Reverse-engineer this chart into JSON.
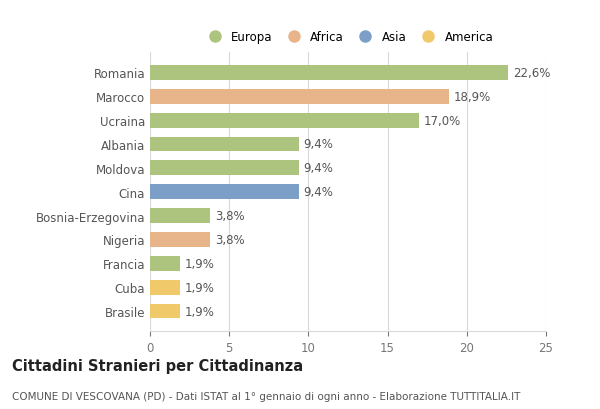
{
  "countries": [
    "Romania",
    "Marocco",
    "Ucraina",
    "Albania",
    "Moldova",
    "Cina",
    "Bosnia-Erzegovina",
    "Nigeria",
    "Francia",
    "Cuba",
    "Brasile"
  ],
  "values": [
    22.6,
    18.9,
    17.0,
    9.4,
    9.4,
    9.4,
    3.8,
    3.8,
    1.9,
    1.9,
    1.9
  ],
  "labels": [
    "22,6%",
    "18,9%",
    "17,0%",
    "9,4%",
    "9,4%",
    "9,4%",
    "3,8%",
    "3,8%",
    "1,9%",
    "1,9%",
    "1,9%"
  ],
  "colors": [
    "#adc47e",
    "#e8b48a",
    "#adc47e",
    "#adc47e",
    "#adc47e",
    "#7b9fc7",
    "#adc47e",
    "#e8b48a",
    "#adc47e",
    "#f0c96a",
    "#f0c96a"
  ],
  "legend_labels": [
    "Europa",
    "Africa",
    "Asia",
    "America"
  ],
  "legend_colors": [
    "#adc47e",
    "#e8b48a",
    "#7b9fc7",
    "#f0c96a"
  ],
  "xlim": [
    0,
    25
  ],
  "xticks": [
    0,
    5,
    10,
    15,
    20,
    25
  ],
  "title": "Cittadini Stranieri per Cittadinanza",
  "subtitle": "COMUNE DI VESCOVANA (PD) - Dati ISTAT al 1° gennaio di ogni anno - Elaborazione TUTTITALIA.IT",
  "background_color": "#ffffff",
  "grid_color": "#d8d8d8",
  "bar_height": 0.62,
  "label_fontsize": 8.5,
  "tick_fontsize": 8.5,
  "title_fontsize": 10.5,
  "subtitle_fontsize": 7.5
}
